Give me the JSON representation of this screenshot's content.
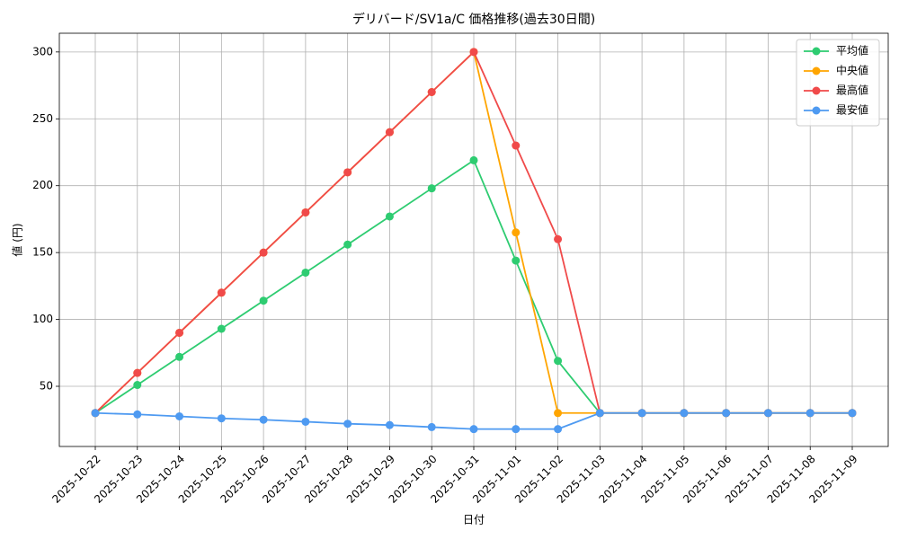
{
  "chart_data": {
    "type": "line",
    "title": "デリバード/SV1a/C 価格推移(過去30日間)",
    "x_label": "日付",
    "y_label": "値 (円)",
    "categories": [
      "2025-10-22",
      "2025-10-23",
      "2025-10-24",
      "2025-10-25",
      "2025-10-26",
      "2025-10-27",
      "2025-10-28",
      "2025-10-29",
      "2025-10-30",
      "2025-10-31",
      "2025-11-01",
      "2025-11-02",
      "2025-11-03",
      "2025-11-04",
      "2025-11-05",
      "2025-11-06",
      "2025-11-07",
      "2025-11-08",
      "2025-11-09"
    ],
    "series": [
      {
        "name": "平均値",
        "color": "#2ecc71",
        "values": [
          30,
          51,
          72,
          93,
          114,
          135,
          156,
          177,
          198,
          219,
          144,
          69,
          30,
          30,
          30,
          30,
          30,
          30,
          30
        ]
      },
      {
        "name": "中央値",
        "color": "#ffa500",
        "values": [
          30,
          60,
          90,
          120,
          150,
          180,
          210,
          240,
          270,
          300,
          165,
          30,
          30,
          30,
          30,
          30,
          30,
          30,
          30
        ]
      },
      {
        "name": "最高値",
        "color": "#f04a4a",
        "values": [
          30,
          60,
          90,
          120,
          150,
          180,
          210,
          240,
          270,
          300,
          230,
          160,
          30,
          30,
          30,
          30,
          30,
          30,
          30
        ]
      },
      {
        "name": "最安値",
        "color": "#4e9af1",
        "values": [
          30,
          29,
          27.5,
          26,
          25,
          23.5,
          22,
          21,
          19.5,
          18,
          18,
          18,
          30,
          30,
          30,
          30,
          30,
          30,
          30
        ]
      }
    ],
    "ylim": [
      5,
      314
    ],
    "yticks": [
      50,
      100,
      150,
      200,
      250,
      300
    ],
    "grid": true,
    "legend": "upper right"
  }
}
